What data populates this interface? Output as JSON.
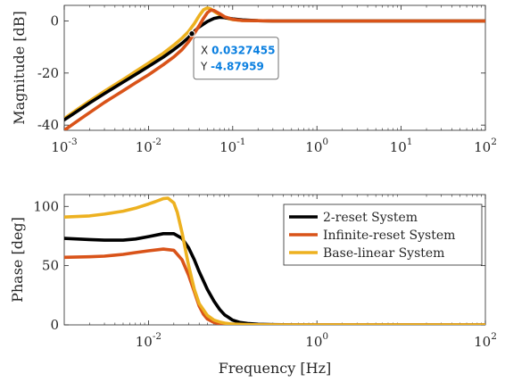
{
  "chart_data": [
    {
      "type": "line",
      "xscale": "log",
      "xlim": [
        0.001,
        100
      ],
      "ylim": [
        -42,
        6
      ],
      "xticks": [
        0.001,
        0.01,
        0.1,
        1,
        10,
        100
      ],
      "xtick_labels": [
        {
          "base": "10",
          "exp": "-3"
        },
        {
          "base": "10",
          "exp": "-2"
        },
        {
          "base": "10",
          "exp": "-1"
        },
        {
          "base": "10",
          "exp": "0"
        },
        {
          "base": "10",
          "exp": "1"
        },
        {
          "base": "10",
          "exp": "2"
        }
      ],
      "yticks": [
        -40,
        -20,
        0
      ],
      "ytick_labels": [
        "-40",
        "-20",
        "0"
      ],
      "xlabel": "",
      "ylabel": "Magnitude [dB]",
      "grid": false,
      "series": [
        {
          "color": "#edb120",
          "x": [
            0.001,
            0.0015,
            0.002,
            0.003,
            0.005,
            0.007,
            0.01,
            0.015,
            0.02,
            0.025,
            0.03,
            0.035,
            0.04,
            0.045,
            0.05,
            0.055,
            0.06,
            0.07,
            0.08,
            0.1,
            0.13,
            0.2,
            0.3,
            1,
            10,
            100
          ],
          "y": [
            -37.5,
            -33.5,
            -30.8,
            -27.0,
            -22.5,
            -19.4,
            -16.2,
            -12.4,
            -9.3,
            -6.6,
            -4.0,
            -1.0,
            2.0,
            4.3,
            5.0,
            4.6,
            3.7,
            2.3,
            1.3,
            0.5,
            0.2,
            0.1,
            0.0,
            0.0,
            0.0,
            0.0
          ]
        },
        {
          "color": "#000000",
          "x": [
            0.001,
            0.0015,
            0.002,
            0.003,
            0.005,
            0.007,
            0.01,
            0.015,
            0.02,
            0.025,
            0.03,
            0.0327455,
            0.04,
            0.05,
            0.06,
            0.07,
            0.08,
            0.1,
            0.13,
            0.2,
            0.3,
            1,
            10,
            100
          ],
          "y": [
            -38.0,
            -34.2,
            -31.5,
            -27.9,
            -23.5,
            -20.6,
            -17.5,
            -13.9,
            -11.0,
            -8.6,
            -6.3,
            -4.87959,
            -2.3,
            -0.2,
            1.0,
            1.4,
            1.3,
            0.8,
            0.4,
            0.1,
            0.0,
            0.0,
            0.0,
            0.0
          ]
        },
        {
          "color": "#d95319",
          "x": [
            0.001,
            0.0015,
            0.002,
            0.003,
            0.005,
            0.007,
            0.01,
            0.015,
            0.02,
            0.025,
            0.03,
            0.035,
            0.04,
            0.045,
            0.05,
            0.055,
            0.06,
            0.07,
            0.08,
            0.1,
            0.13,
            0.2,
            0.3,
            1,
            10,
            100
          ],
          "y": [
            -42.0,
            -38.0,
            -35.2,
            -31.3,
            -26.8,
            -23.8,
            -20.7,
            -16.8,
            -13.8,
            -11.0,
            -8.0,
            -4.8,
            -1.8,
            1.0,
            3.2,
            4.2,
            4.0,
            2.8,
            1.6,
            0.6,
            0.2,
            0.1,
            0.0,
            0.0,
            0.0,
            0.0
          ]
        }
      ],
      "datatip": {
        "x_label": "X",
        "x_value": "0.0327455",
        "y_label": "Y",
        "y_value": "-4.87959",
        "x": 0.0327455,
        "y": -4.87959
      }
    },
    {
      "type": "line",
      "xscale": "log",
      "xlim": [
        0.001,
        100
      ],
      "ylim": [
        0,
        110
      ],
      "xticks": [
        0.01,
        1,
        100
      ],
      "xtick_labels": [
        {
          "base": "10",
          "exp": "-2"
        },
        {
          "base": "10",
          "exp": "0"
        },
        {
          "base": "10",
          "exp": "2"
        }
      ],
      "yticks": [
        0,
        50,
        100
      ],
      "ytick_labels": [
        "0",
        "50",
        "100"
      ],
      "xlabel": "Frequency [Hz]",
      "ylabel": "Phase [deg]",
      "grid": false,
      "legend_position": "top-right",
      "series": [
        {
          "name": "2-reset System",
          "color": "#000000",
          "x": [
            0.001,
            0.002,
            0.003,
            0.005,
            0.007,
            0.01,
            0.015,
            0.02,
            0.025,
            0.03,
            0.035,
            0.04,
            0.045,
            0.05,
            0.06,
            0.07,
            0.08,
            0.1,
            0.12,
            0.15,
            0.2,
            0.3,
            0.5,
            1,
            10,
            100
          ],
          "y": [
            73,
            72,
            71.5,
            71.5,
            72.5,
            74.5,
            77,
            77,
            73,
            65,
            55,
            45,
            37,
            30,
            20,
            13,
            8.5,
            4,
            2.2,
            1.2,
            0.5,
            0.2,
            0.1,
            0,
            0,
            0
          ]
        },
        {
          "name": "Infinite-reset System",
          "color": "#d95319",
          "x": [
            0.001,
            0.002,
            0.003,
            0.005,
            0.007,
            0.01,
            0.015,
            0.02,
            0.025,
            0.03,
            0.035,
            0.04,
            0.045,
            0.05,
            0.06,
            0.07,
            0.08,
            0.1,
            0.15,
            0.2,
            0.5,
            1,
            10,
            100
          ],
          "y": [
            57,
            57.5,
            58,
            59.5,
            61,
            62.5,
            64,
            63,
            55,
            42,
            28,
            16,
            9,
            5,
            2,
            1,
            0.6,
            0.3,
            0.1,
            0,
            0,
            0,
            0,
            0
          ]
        },
        {
          "name": "Base-linear System",
          "color": "#edb120",
          "x": [
            0.001,
            0.002,
            0.003,
            0.005,
            0.007,
            0.01,
            0.012,
            0.015,
            0.017,
            0.02,
            0.022,
            0.025,
            0.03,
            0.035,
            0.04,
            0.05,
            0.06,
            0.07,
            0.08,
            0.1,
            0.15,
            0.2,
            0.5,
            1,
            10,
            100
          ],
          "y": [
            91,
            92,
            93.5,
            96,
            98.5,
            102,
            104,
            106.5,
            107,
            103,
            95,
            78,
            50,
            30,
            18,
            8,
            4,
            2.5,
            1.5,
            0.7,
            0.2,
            0.1,
            0,
            0,
            0,
            0
          ]
        }
      ]
    }
  ]
}
